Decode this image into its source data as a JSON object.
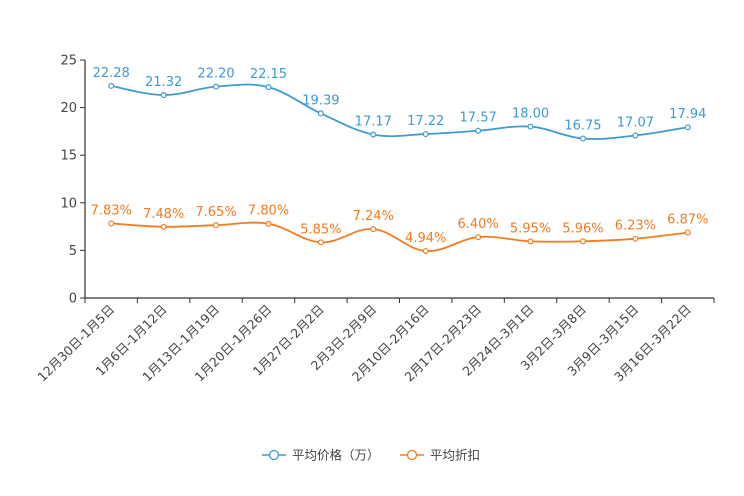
{
  "chart_data": {
    "type": "line",
    "categories": [
      "12月30日-1月5日",
      "1月6日-1月12日",
      "1月13日-1月19日",
      "1月20日-1月26日",
      "1月27日-2月2日",
      "2月3日-2月9日",
      "2月10日-2月16日",
      "2月17日-2月23日",
      "2月24日-3月1日",
      "3月2日-3月8日",
      "3月9日-3月15日",
      "3月16日-3月22日"
    ],
    "series": [
      {
        "name": "平均价格（万）",
        "color": "#3c9bd0",
        "values": [
          22.28,
          21.32,
          22.2,
          22.15,
          19.39,
          17.17,
          17.22,
          17.57,
          18.0,
          16.75,
          17.07,
          17.94
        ],
        "labels": [
          "22.28",
          "21.32",
          "22.20",
          "22.15",
          "19.39",
          "17.17",
          "17.22",
          "17.57",
          "18.00",
          "16.75",
          "17.07",
          "17.94"
        ]
      },
      {
        "name": "平均折扣",
        "color": "#f57b1f",
        "values": [
          7.83,
          7.48,
          7.65,
          7.8,
          5.85,
          7.24,
          4.94,
          6.4,
          5.95,
          5.96,
          6.23,
          6.87
        ],
        "labels": [
          "7.83%",
          "7.48%",
          "7.65%",
          "7.80%",
          "5.85%",
          "7.24%",
          "4.94%",
          "6.40%",
          "5.95%",
          "5.96%",
          "6.23%",
          "6.87%"
        ]
      }
    ],
    "ylim": [
      0,
      25
    ],
    "yticks": [
      "0",
      "5",
      "10",
      "15",
      "20",
      "25"
    ],
    "legend_position": "bottom-center",
    "title": "",
    "xlabel": "",
    "ylabel": ""
  }
}
